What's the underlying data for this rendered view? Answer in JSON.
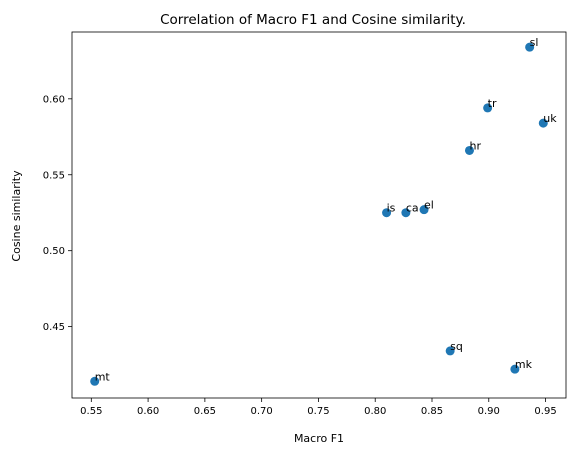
{
  "chart_data": {
    "type": "scatter",
    "title": "Correlation of Macro F1 and Cosine similarity.",
    "xlabel": "Macro F1",
    "ylabel": "Cosine similarity",
    "xlim": [
      0.533,
      0.968
    ],
    "ylim": [
      0.403,
      0.644
    ],
    "xticks": [
      0.55,
      0.6,
      0.65,
      0.7,
      0.75,
      0.8,
      0.85,
      0.9,
      0.95
    ],
    "xtick_labels": [
      "0.55",
      "0.60",
      "0.65",
      "0.70",
      "0.75",
      "0.80",
      "0.85",
      "0.90",
      "0.95"
    ],
    "yticks": [
      0.45,
      0.5,
      0.55,
      0.6
    ],
    "ytick_labels": [
      "0.45",
      "0.50",
      "0.55",
      "0.60"
    ],
    "grid": false,
    "marker_color": "#1f77b4",
    "points": [
      {
        "label": "mt",
        "x": 0.553,
        "y": 0.414
      },
      {
        "label": "is",
        "x": 0.81,
        "y": 0.525
      },
      {
        "label": "ca",
        "x": 0.827,
        "y": 0.525
      },
      {
        "label": "el",
        "x": 0.843,
        "y": 0.527
      },
      {
        "label": "sq",
        "x": 0.866,
        "y": 0.434
      },
      {
        "label": "hr",
        "x": 0.883,
        "y": 0.566
      },
      {
        "label": "tr",
        "x": 0.899,
        "y": 0.594
      },
      {
        "label": "mk",
        "x": 0.923,
        "y": 0.422
      },
      {
        "label": "sl",
        "x": 0.936,
        "y": 0.634
      },
      {
        "label": "uk",
        "x": 0.948,
        "y": 0.584
      }
    ]
  }
}
